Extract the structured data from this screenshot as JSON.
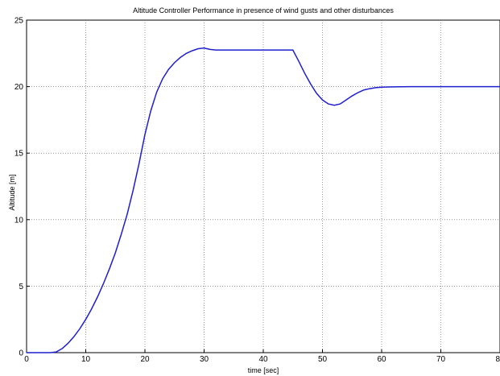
{
  "chart_data": {
    "type": "line",
    "title": "Altitude Controller Performance in presence of wind gusts and other disturbances",
    "xlabel": "time [sec]",
    "ylabel": "Altitude [m]",
    "xlim": [
      0,
      80
    ],
    "ylim": [
      0,
      25
    ],
    "xticks": [
      0,
      10,
      20,
      30,
      40,
      50,
      60,
      70,
      80
    ],
    "yticks": [
      0,
      5,
      10,
      15,
      20,
      25
    ],
    "grid": true,
    "series": [
      {
        "color": "#1f1fd0",
        "x": [
          0,
          4,
          5,
          6,
          7,
          8,
          9,
          10,
          11,
          12,
          13,
          14,
          15,
          16,
          17,
          18,
          19,
          20,
          21,
          22,
          23,
          24,
          25,
          26,
          27,
          28,
          29,
          30,
          31,
          32,
          35,
          40,
          45,
          46,
          47,
          48,
          49,
          50,
          51,
          52,
          53,
          54,
          55,
          56,
          57,
          58,
          59,
          60,
          62,
          65,
          70,
          80
        ],
        "y": [
          0,
          0,
          0.05,
          0.3,
          0.7,
          1.2,
          1.8,
          2.5,
          3.3,
          4.2,
          5.2,
          6.3,
          7.5,
          8.9,
          10.4,
          12.2,
          14.2,
          16.4,
          18.2,
          19.6,
          20.6,
          21.3,
          21.8,
          22.2,
          22.5,
          22.7,
          22.85,
          22.9,
          22.8,
          22.75,
          22.75,
          22.75,
          22.75,
          21.9,
          21.0,
          20.2,
          19.5,
          19.0,
          18.7,
          18.6,
          18.7,
          19.0,
          19.3,
          19.55,
          19.75,
          19.85,
          19.92,
          19.96,
          19.98,
          20.0,
          20.0,
          20.0
        ]
      }
    ]
  }
}
